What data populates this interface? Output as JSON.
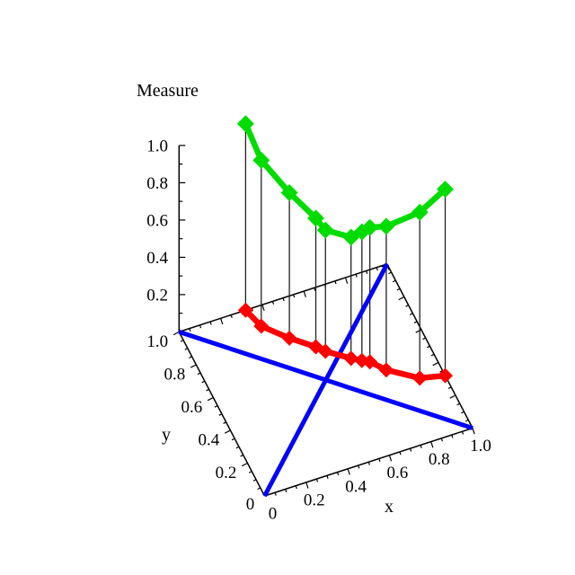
{
  "chart_data": {
    "type": "line",
    "projection": "3d",
    "title": "Measure",
    "xlabel": "x",
    "ylabel": "y",
    "zlabel": "Measure",
    "xlim": [
      0,
      1
    ],
    "ylim": [
      0,
      1
    ],
    "zlim": [
      0,
      1
    ],
    "grid": false,
    "legend": false,
    "x_tick_values": [
      0,
      0.2,
      0.4,
      0.6,
      0.8,
      1.0
    ],
    "x_tick_labels": [
      "0",
      "0.2",
      "0.4",
      "0.6",
      "0.8",
      "1.0"
    ],
    "y_tick_values": [
      0,
      0.2,
      0.4,
      0.6,
      0.8,
      1.0
    ],
    "y_tick_labels": [
      "0",
      "0.2",
      "0.4",
      "0.6",
      "0.8",
      "1.0"
    ],
    "z_tick_values": [
      0.2,
      0.4,
      0.6,
      0.8,
      1.0
    ],
    "z_tick_labels": [
      "0.2",
      "0.4",
      "0.6",
      "0.8",
      "1.0"
    ],
    "minor_tick_step": 0.05,
    "z_minor_tick_step": 0.1,
    "colors": {
      "upper_curve": "#00DC00",
      "base_curve": "#FF0000",
      "diagonals": "#0000FF",
      "axes": "#000000",
      "drop_lines": "#222222"
    },
    "reference_lines": [
      {
        "name": "diagonal-y-equals-x",
        "from": [
          0,
          0
        ],
        "to": [
          1,
          1
        ]
      },
      {
        "name": "diagonal-y-equals-1-minus-x",
        "from": [
          0,
          1
        ],
        "to": [
          1,
          0
        ]
      }
    ],
    "drop_lines": true,
    "marker": "diamond",
    "points": [
      {
        "x": 0.32,
        "y": 1.0,
        "measure": 1.0
      },
      {
        "x": 0.35,
        "y": 0.89,
        "measure": 0.89
      },
      {
        "x": 0.44,
        "y": 0.78,
        "measure": 0.78
      },
      {
        "x": 0.53,
        "y": 0.69,
        "measure": 0.69
      },
      {
        "x": 0.56,
        "y": 0.65,
        "measure": 0.65
      },
      {
        "x": 0.65,
        "y": 0.57,
        "measure": 0.65
      },
      {
        "x": 0.69,
        "y": 0.54,
        "measure": 0.69
      },
      {
        "x": 0.72,
        "y": 0.52,
        "measure": 0.72
      },
      {
        "x": 0.77,
        "y": 0.45,
        "measure": 0.77
      },
      {
        "x": 0.89,
        "y": 0.35,
        "measure": 0.89
      },
      {
        "x": 1.0,
        "y": 0.32,
        "measure": 1.0
      }
    ],
    "series": [
      {
        "name": "measure-curve",
        "role": "values at height z = measure"
      },
      {
        "name": "base-path-projection",
        "role": "same points projected on plane z = 0"
      }
    ]
  }
}
